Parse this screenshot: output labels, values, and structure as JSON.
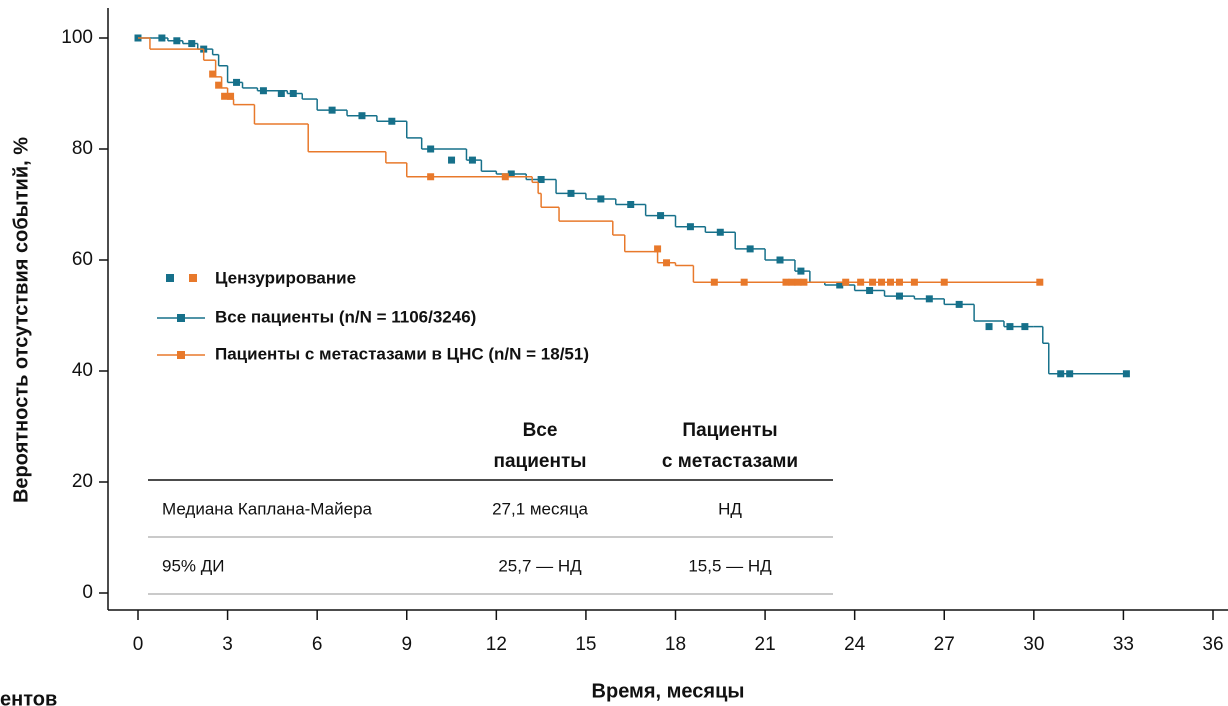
{
  "chart_data": {
    "type": "kaplan-meier",
    "x_label": "Время, месяцы",
    "y_label": "Вероятность отсутствия событий, %",
    "cut_text": "ентов",
    "censor_label": "Цензурирование",
    "xlim": [
      0,
      36
    ],
    "ylim": [
      0,
      100
    ],
    "xticks": [
      0,
      3,
      6,
      9,
      12,
      15,
      18,
      21,
      24,
      27,
      30,
      33,
      36
    ],
    "yticks": [
      0,
      20,
      40,
      60,
      80,
      100
    ],
    "series": [
      {
        "name": "Все пациенты (n/N = 1106/3246)",
        "color": "#16708a",
        "x": [
          0,
          0.5,
          1,
          1.5,
          2,
          2.5,
          2.7,
          3,
          3.5,
          4,
          5,
          5.5,
          6,
          7,
          8,
          9,
          9.5,
          11,
          11.5,
          12,
          13,
          14,
          15,
          16,
          17,
          18,
          19,
          20,
          21,
          22,
          22.5,
          23,
          24,
          25,
          26,
          27,
          28,
          29,
          30,
          30.3,
          30.5,
          33.1
        ],
        "values": [
          100,
          100,
          99.5,
          99,
          98,
          97,
          95,
          92,
          91,
          90.5,
          90,
          89,
          87,
          86,
          85,
          82,
          80,
          78,
          76,
          75.5,
          74.5,
          72,
          71,
          70,
          68,
          66,
          65,
          62,
          60,
          58,
          56,
          55.5,
          54.5,
          53.5,
          53,
          52,
          49,
          48,
          48,
          45,
          39.5,
          39.5
        ],
        "censored_x": [
          0,
          0.8,
          1.3,
          1.8,
          2.2,
          3.3,
          4.2,
          4.8,
          5.2,
          6.5,
          7.5,
          8.5,
          9.8,
          10.5,
          11.2,
          12.5,
          13.5,
          14.5,
          15.5,
          16.5,
          17.5,
          18.5,
          19.5,
          20.5,
          21.5,
          22.2,
          23.5,
          24.5,
          25.5,
          26.5,
          27.5,
          28.5,
          29.2,
          29.7,
          30.9,
          31.2,
          33.1
        ],
        "censored_values": [
          100,
          100,
          99.5,
          99,
          98,
          92,
          90.5,
          90,
          90,
          87,
          86,
          85,
          80,
          78,
          78,
          75.5,
          74.5,
          72,
          71,
          70,
          68,
          66,
          65,
          62,
          60,
          58,
          55.5,
          54.5,
          53.5,
          53,
          52,
          48,
          48,
          48,
          39.5,
          39.5,
          39.5
        ]
      },
      {
        "name": "Пациенты с метастазами в ЦНС (n/N = 18/51)",
        "color": "#e8792b",
        "x": [
          0,
          0.4,
          2.2,
          2.6,
          2.8,
          3,
          3.2,
          3.9,
          5.7,
          8.3,
          9,
          13.2,
          13.4,
          13.5,
          14.1,
          15.9,
          16.3,
          17.4,
          18,
          18.6,
          30.2
        ],
        "values": [
          100,
          98,
          96,
          93,
          91,
          89,
          88,
          84.5,
          79.5,
          77.5,
          75,
          74,
          72,
          69.5,
          67,
          64.5,
          61.5,
          59.5,
          59,
          56,
          56
        ],
        "censored_x": [
          2.5,
          2.7,
          2.9,
          3.1,
          9.8,
          12.3,
          17.4,
          17.7,
          19.3,
          20.3,
          21.7,
          21.9,
          22.1,
          22.3,
          23.7,
          24.2,
          24.6,
          24.9,
          25.2,
          25.5,
          26,
          27,
          30.2
        ],
        "censored_values": [
          93.5,
          91.5,
          89.5,
          89.5,
          75,
          75,
          62,
          59.5,
          56,
          56,
          56,
          56,
          56,
          56,
          56,
          56,
          56,
          56,
          56,
          56,
          56,
          56,
          56
        ]
      }
    ],
    "table": {
      "columns": [
        [
          "Все",
          "пациенты"
        ],
        [
          "Пациенты",
          "с метастазами"
        ]
      ],
      "rows": [
        [
          "Медиана Каплана-Майера",
          "27,1 месяца",
          "НД"
        ],
        [
          "95% ДИ",
          "25,7 — НД",
          "15,5 — НД"
        ]
      ]
    }
  }
}
